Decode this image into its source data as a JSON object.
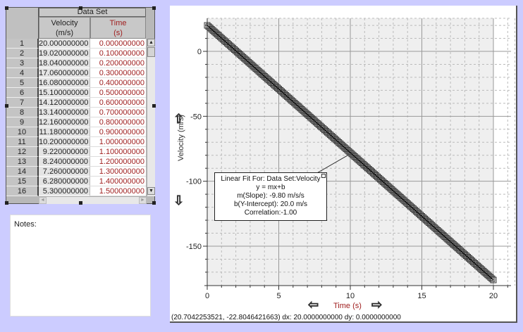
{
  "table": {
    "dataset_title": "Data Set",
    "columns": [
      {
        "name": "Velocity",
        "unit": "(m/s)"
      },
      {
        "name": "Time",
        "unit": "(s)"
      }
    ],
    "rows": [
      {
        "n": "1",
        "velocity": "20.000000000",
        "time": "0.000000000"
      },
      {
        "n": "2",
        "velocity": "19.020000000",
        "time": "0.100000000"
      },
      {
        "n": "3",
        "velocity": "18.040000000",
        "time": "0.200000000"
      },
      {
        "n": "4",
        "velocity": "17.060000000",
        "time": "0.300000000"
      },
      {
        "n": "5",
        "velocity": "16.080000000",
        "time": "0.400000000"
      },
      {
        "n": "6",
        "velocity": "15.100000000",
        "time": "0.500000000"
      },
      {
        "n": "7",
        "velocity": "14.120000000",
        "time": "0.600000000"
      },
      {
        "n": "8",
        "velocity": "13.140000000",
        "time": "0.700000000"
      },
      {
        "n": "9",
        "velocity": "12.160000000",
        "time": "0.800000000"
      },
      {
        "n": "10",
        "velocity": "11.180000000",
        "time": "0.900000000"
      },
      {
        "n": "11",
        "velocity": "10.200000000",
        "time": "1.000000000"
      },
      {
        "n": "12",
        "velocity": "9.220000000",
        "time": "1.100000000"
      },
      {
        "n": "13",
        "velocity": "8.240000000",
        "time": "1.200000000"
      },
      {
        "n": "14",
        "velocity": "7.260000000",
        "time": "1.300000000"
      },
      {
        "n": "15",
        "velocity": "6.280000000",
        "time": "1.400000000"
      },
      {
        "n": "16",
        "velocity": "5.300000000",
        "time": "1.500000000"
      }
    ],
    "scroll_up": "▲",
    "scroll_down": "▼",
    "scroll_left": "◄",
    "scroll_right": "►"
  },
  "notes": {
    "label": "Notes:"
  },
  "graph": {
    "y_axis_label": "Velocity (m/s)",
    "x_axis_label": "Time (s)",
    "y_ticks": [
      "0",
      "-50",
      "-100",
      "-150"
    ],
    "x_ticks": [
      "0",
      "5",
      "10",
      "15",
      "20"
    ],
    "up_arrow": "⇧",
    "down_arrow": "⇩",
    "left_arrow": "⇦",
    "right_arrow": "⇨",
    "status_text": "(20.7042253521, -22.8046421663) dx: 20.0000000000 dy: 0.0000000000",
    "fit": {
      "title": "Linear Fit For:  Data Set:Velocity",
      "equation": "y = mx+b",
      "slope": "m(Slope): -9.80 m/s/s",
      "intercept": "b(Y-Intercept): 20.0 m/s",
      "correlation": "Correlation:-1.00"
    },
    "colors": {
      "plot_bg": "#efefef",
      "time_label": "#a02020",
      "background": "#ccccff"
    }
  }
}
